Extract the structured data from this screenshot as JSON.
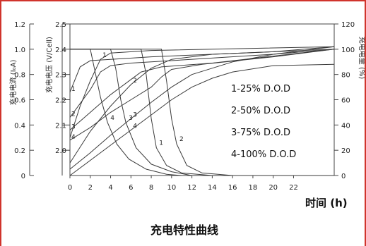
{
  "chart_data": {
    "type": "line",
    "title": "充电特性曲线",
    "xlabel": "时间 (h)",
    "x_ticks": [
      "0",
      "2",
      "4",
      "6",
      "8",
      "10",
      "12",
      "14",
      "16",
      "18",
      "20",
      "22"
    ],
    "xlim": [
      0,
      26
    ],
    "axes": {
      "current": {
        "label": "充电电流 (I₀A)",
        "ticks": [
          "0",
          "0.2",
          "0.4",
          "0.6",
          "0.8",
          "1.0",
          "1.2"
        ],
        "range": [
          0,
          1.2
        ]
      },
      "voltage": {
        "label": "充电电压 (V/Cell)",
        "ticks": [
          "2.0",
          "2.1",
          "2.2",
          "2.3",
          "2.4",
          "2.5"
        ],
        "range": [
          1.9,
          2.5
        ]
      },
      "capacity": {
        "label": "充电电量 (%)",
        "ticks": [
          "0",
          "20",
          "40",
          "60",
          "80",
          "100",
          "120"
        ],
        "range": [
          0,
          120
        ]
      }
    },
    "series": [
      {
        "name": "1-25% D.O.D",
        "curve_label": "1",
        "voltage": [
          [
            0,
            2.23
          ],
          [
            1,
            2.33
          ],
          [
            2,
            2.355
          ],
          [
            4,
            2.36
          ],
          [
            8,
            2.37
          ],
          [
            14,
            2.38
          ],
          [
            20,
            2.39
          ],
          [
            26,
            2.41
          ]
        ],
        "current": [
          [
            0,
            1.0
          ],
          [
            7,
            1.0
          ],
          [
            7.5,
            0.8
          ],
          [
            8,
            0.45
          ],
          [
            8.5,
            0.22
          ],
          [
            9.5,
            0.08
          ],
          [
            11,
            0.02
          ],
          [
            14,
            0.0
          ],
          [
            26,
            0.0
          ]
        ],
        "capacity": [
          [
            0,
            30
          ],
          [
            1,
            55
          ],
          [
            2,
            75
          ],
          [
            3,
            92
          ],
          [
            4,
            97
          ],
          [
            8,
            99
          ],
          [
            26,
            102
          ]
        ]
      },
      {
        "name": "2-50% D.O.D",
        "curve_label": "2",
        "voltage": [
          [
            0,
            2.13
          ],
          [
            2,
            2.24
          ],
          [
            3,
            2.31
          ],
          [
            4,
            2.335
          ],
          [
            6,
            2.345
          ],
          [
            10,
            2.355
          ],
          [
            20,
            2.38
          ],
          [
            26,
            2.41
          ]
        ],
        "current": [
          [
            0,
            1.0
          ],
          [
            9,
            1.0
          ],
          [
            9.5,
            0.75
          ],
          [
            10,
            0.45
          ],
          [
            10.5,
            0.25
          ],
          [
            11.5,
            0.08
          ],
          [
            13,
            0.02
          ],
          [
            16,
            0.0
          ],
          [
            26,
            0.0
          ]
        ],
        "capacity": [
          [
            0,
            10
          ],
          [
            2,
            35
          ],
          [
            4,
            55
          ],
          [
            6,
            72
          ],
          [
            8,
            85
          ],
          [
            10,
            92
          ],
          [
            14,
            96
          ],
          [
            26,
            100
          ]
        ]
      },
      {
        "name": "3-75% D.O.D",
        "curve_label": "3",
        "voltage": [
          [
            0,
            2.08
          ],
          [
            2,
            2.15
          ],
          [
            4,
            2.22
          ],
          [
            6,
            2.28
          ],
          [
            7,
            2.31
          ],
          [
            9,
            2.33
          ],
          [
            14,
            2.345
          ],
          [
            26,
            2.4
          ]
        ],
        "current": [
          [
            0,
            1.0
          ],
          [
            4,
            1.0
          ],
          [
            4.5,
            0.85
          ],
          [
            5,
            0.6
          ],
          [
            5.5,
            0.42
          ],
          [
            6.5,
            0.22
          ],
          [
            8,
            0.09
          ],
          [
            10,
            0.03
          ],
          [
            12,
            0.0
          ],
          [
            26,
            0.0
          ]
        ],
        "capacity": [
          [
            0,
            5
          ],
          [
            2,
            18
          ],
          [
            4,
            32
          ],
          [
            6,
            45
          ],
          [
            8,
            58
          ],
          [
            10,
            70
          ],
          [
            12,
            80
          ],
          [
            16,
            90
          ],
          [
            20,
            96
          ],
          [
            26,
            100
          ]
        ]
      },
      {
        "name": "4-100% D.O.D",
        "curve_label": "4",
        "voltage": [
          [
            0,
            2.04
          ],
          [
            2,
            2.09
          ],
          [
            4,
            2.15
          ],
          [
            6,
            2.2
          ],
          [
            8,
            2.25
          ],
          [
            9,
            2.29
          ],
          [
            10,
            2.32
          ],
          [
            13,
            2.34
          ],
          [
            20,
            2.37
          ],
          [
            26,
            2.4
          ]
        ],
        "current": [
          [
            0,
            1.0
          ],
          [
            2,
            1.0
          ],
          [
            2.4,
            0.85
          ],
          [
            3,
            0.62
          ],
          [
            3.7,
            0.42
          ],
          [
            4.6,
            0.25
          ],
          [
            5.8,
            0.13
          ],
          [
            7.5,
            0.05
          ],
          [
            9.5,
            0.01
          ],
          [
            11,
            0.0
          ],
          [
            26,
            0.0
          ]
        ],
        "capacity": [
          [
            0,
            0
          ],
          [
            2,
            12
          ],
          [
            4,
            24
          ],
          [
            6,
            36
          ],
          [
            8,
            48
          ],
          [
            10,
            60
          ],
          [
            12,
            70
          ],
          [
            14,
            77
          ],
          [
            16,
            82
          ],
          [
            20,
            87
          ],
          [
            26,
            88
          ]
        ]
      }
    ],
    "legend": [
      "1-25% D.O.D",
      "2-50% D.O.D",
      "3-75% D.O.D",
      "4-100% D.O.D"
    ],
    "legend_position": "right",
    "gridlines": false,
    "colors": {
      "frame": "#d0342c",
      "curve": "#3a3a3a",
      "text": "#111111"
    }
  }
}
